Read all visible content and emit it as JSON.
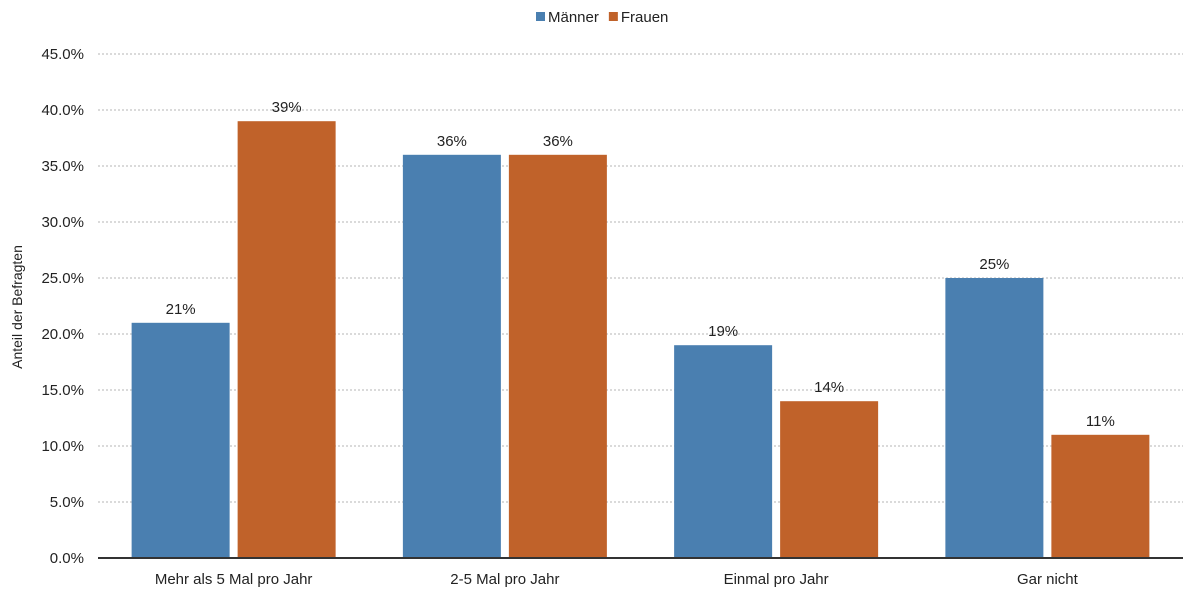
{
  "chart_data": {
    "type": "bar",
    "categories": [
      "Mehr als 5 Mal pro Jahr",
      "2-5 Mal pro Jahr",
      "Einmal pro Jahr",
      "Gar nicht"
    ],
    "series": [
      {
        "name": "Männer",
        "values": [
          21,
          36,
          19,
          25
        ],
        "labels": [
          "21%",
          "36%",
          "19%",
          "25%"
        ],
        "color": "#4a7fb0"
      },
      {
        "name": "Frauen",
        "values": [
          39,
          36,
          14,
          11
        ],
        "labels": [
          "39%",
          "36%",
          "14%",
          "11%"
        ],
        "color": "#c0622a"
      }
    ],
    "title": "",
    "xlabel": "",
    "ylabel": "Anteil der Befragten",
    "ylim": [
      0,
      45
    ],
    "yticks": [
      "0.0%",
      "5.0%",
      "10.0%",
      "15.0%",
      "20.0%",
      "25.0%",
      "30.0%",
      "35.0%",
      "40.0%",
      "45.0%"
    ],
    "grid": true,
    "legend_position": "top-center"
  }
}
